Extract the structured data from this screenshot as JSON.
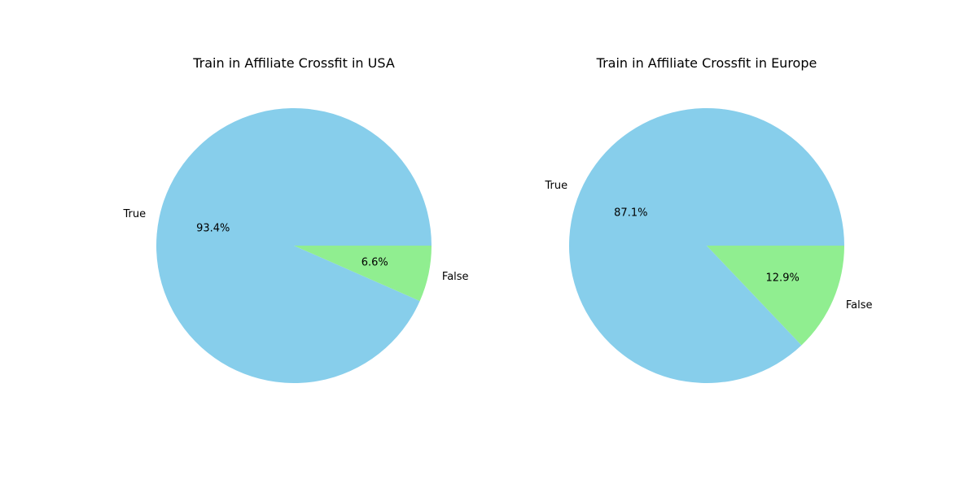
{
  "chart_data": [
    {
      "type": "pie",
      "title": "Train in Affiliate Crossfit in USA",
      "slices": [
        {
          "label": "True",
          "value": 93.4,
          "pct_label": "93.4%",
          "color": "#87ceeb"
        },
        {
          "label": "False",
          "value": 6.6,
          "pct_label": "6.6%",
          "color": "#90ee90"
        }
      ]
    },
    {
      "type": "pie",
      "title": "Train in Affiliate Crossfit in Europe",
      "slices": [
        {
          "label": "True",
          "value": 87.1,
          "pct_label": "87.1%",
          "color": "#87ceeb"
        },
        {
          "label": "False",
          "value": 12.9,
          "pct_label": "12.9%",
          "color": "#90ee90"
        }
      ]
    }
  ]
}
